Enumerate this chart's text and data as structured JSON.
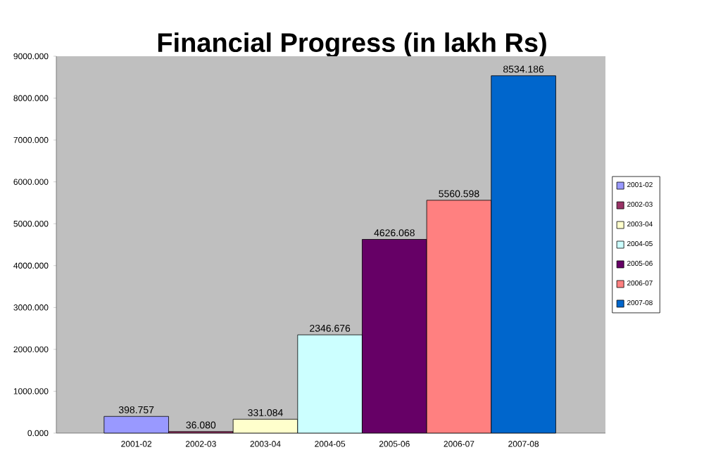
{
  "chart_data": {
    "type": "bar",
    "title": "Financial Progress (in lakh Rs)",
    "categories": [
      "2001-02",
      "2002-03",
      "2003-04",
      "2004-05",
      "2005-06",
      "2006-07",
      "2007-08"
    ],
    "series": [
      {
        "name": "2001-02",
        "color": "#9999ff",
        "values": [
          398.757,
          null,
          null,
          null,
          null,
          null,
          null
        ],
        "value_labels": [
          "398.757",
          null,
          null,
          null,
          null,
          null,
          null
        ]
      },
      {
        "name": "2002-03",
        "color": "#993366",
        "values": [
          null,
          36.08,
          null,
          null,
          null,
          null,
          null
        ],
        "value_labels": [
          null,
          "36.080",
          null,
          null,
          null,
          null,
          null
        ]
      },
      {
        "name": "2003-04",
        "color": "#ffffcc",
        "values": [
          null,
          null,
          331.084,
          null,
          null,
          null,
          null
        ],
        "value_labels": [
          null,
          null,
          "331.084",
          null,
          null,
          null,
          null
        ]
      },
      {
        "name": "2004-05",
        "color": "#ccffff",
        "values": [
          null,
          null,
          null,
          2346.676,
          null,
          null,
          null
        ],
        "value_labels": [
          null,
          null,
          null,
          "2346.676",
          null,
          null,
          null
        ]
      },
      {
        "name": "2005-06",
        "color": "#660066",
        "values": [
          null,
          null,
          null,
          null,
          4626.068,
          null,
          null
        ],
        "value_labels": [
          null,
          null,
          null,
          null,
          "4626.068",
          null,
          null
        ]
      },
      {
        "name": "2006-07",
        "color": "#ff8080",
        "values": [
          null,
          null,
          null,
          null,
          null,
          5560.598,
          null
        ],
        "value_labels": [
          null,
          null,
          null,
          null,
          null,
          "5560.598",
          null
        ]
      },
      {
        "name": "2007-08",
        "color": "#0066cc",
        "values": [
          null,
          null,
          null,
          null,
          null,
          null,
          8534.186
        ],
        "value_labels": [
          null,
          null,
          null,
          null,
          null,
          null,
          "8534.186"
        ]
      }
    ],
    "ylim": [
      0,
      9000
    ],
    "yticks": [
      {
        "value": 0,
        "label": "0.000"
      },
      {
        "value": 1000,
        "label": "1000.000"
      },
      {
        "value": 2000,
        "label": "2000.000"
      },
      {
        "value": 3000,
        "label": "3000.000"
      },
      {
        "value": 4000,
        "label": "4000.000"
      },
      {
        "value": 5000,
        "label": "5000.000"
      },
      {
        "value": 6000,
        "label": "6000.000"
      },
      {
        "value": 7000,
        "label": "7000.000"
      },
      {
        "value": 8000,
        "label": "8000.000"
      },
      {
        "value": 9000,
        "label": "9000.000"
      }
    ],
    "legend": "right",
    "grid": false
  }
}
